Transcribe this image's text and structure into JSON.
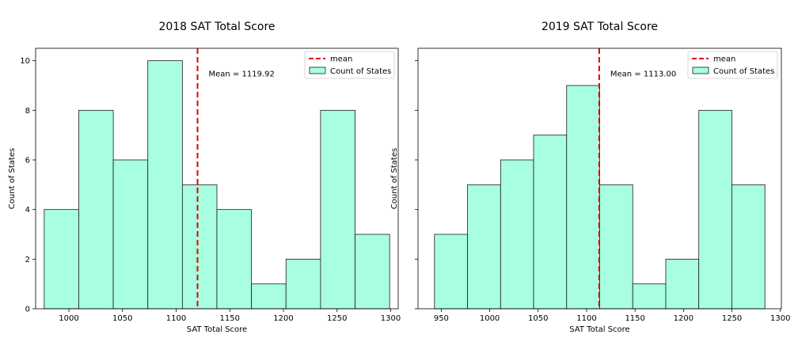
{
  "chart_data": [
    {
      "type": "bar",
      "title": "2018 SAT Total Score",
      "xlabel": "SAT Total Score",
      "ylabel": "Count of States",
      "bin_edges": [
        977,
        1009.2,
        1041.4,
        1073.6,
        1105.8,
        1138,
        1170.2,
        1202.4,
        1234.6,
        1266.8,
        1299
      ],
      "values": [
        4,
        8,
        6,
        10,
        5,
        4,
        1,
        2,
        8,
        3
      ],
      "xlim": [
        969,
        1307
      ],
      "ylim": [
        0,
        10.5
      ],
      "xticks": [
        1000,
        1050,
        1100,
        1150,
        1200,
        1250,
        1300
      ],
      "xtick_labels": [
        "1000",
        "1050",
        "1100",
        "1150",
        "1200",
        "1250",
        "1300"
      ],
      "yticks": [
        0,
        2,
        4,
        6,
        8,
        10
      ],
      "ytick_labels": [
        "0",
        "2",
        "4",
        "6",
        "8",
        "10"
      ],
      "mean": 1119.92,
      "mean_label": "Mean = 1119.92",
      "legend": {
        "position": "top-right",
        "line_label": "mean",
        "bar_label": "Count of States"
      },
      "bar_color": "#a8ffe0",
      "mean_color": "#e00000",
      "grid": false
    },
    {
      "type": "bar",
      "title": "2019 SAT Total Score",
      "xlabel": "SAT Total Score",
      "ylabel": "Count of States",
      "bin_edges": [
        943,
        977.1,
        1011.2,
        1045.3,
        1079.4,
        1113.5,
        1147.6,
        1181.7,
        1215.8,
        1249.9,
        1284
      ],
      "values": [
        3,
        5,
        6,
        7,
        9,
        5,
        1,
        2,
        8,
        5
      ],
      "xlim": [
        926,
        1301
      ],
      "ylim": [
        0,
        10.5
      ],
      "xticks": [
        950,
        1000,
        1050,
        1100,
        1150,
        1200,
        1250,
        1300
      ],
      "xtick_labels": [
        "950",
        "1000",
        "1050",
        "1100",
        "1150",
        "1200",
        "1250",
        "1300"
      ],
      "yticks": [
        0,
        2,
        4,
        6,
        8,
        10
      ],
      "ytick_labels": [],
      "mean": 1113.0,
      "mean_label": "Mean = 1113.00",
      "legend": {
        "position": "top-right",
        "line_label": "mean",
        "bar_label": "Count of States"
      },
      "bar_color": "#a8ffe0",
      "mean_color": "#e00000",
      "grid": false
    }
  ]
}
